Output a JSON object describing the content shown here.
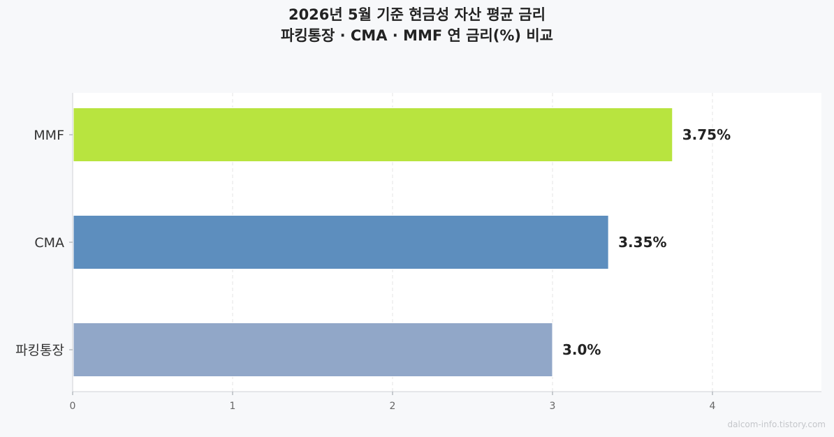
{
  "title_line1": "2026년 5월 기준 현금성 자산 평균 금리",
  "title_line2": "파킹통장 · CMA · MMF 연 금리(%) 비교",
  "watermark": "dalcom-info.tistory.com",
  "chart_data": {
    "type": "bar",
    "orientation": "horizontal",
    "categories": [
      "MMF",
      "CMA",
      "파킹통장"
    ],
    "values": [
      3.75,
      3.35,
      3.0
    ],
    "value_labels": [
      "3.75%",
      "3.35%",
      "3.0%"
    ],
    "colors": [
      "#b8e43f",
      "#5d8ebe",
      "#91a7c8"
    ],
    "xticks": [
      "0",
      "1",
      "2",
      "3",
      "4"
    ],
    "xlim": [
      0,
      4.7
    ],
    "grid": "vertical-dashed",
    "legend": "none"
  }
}
